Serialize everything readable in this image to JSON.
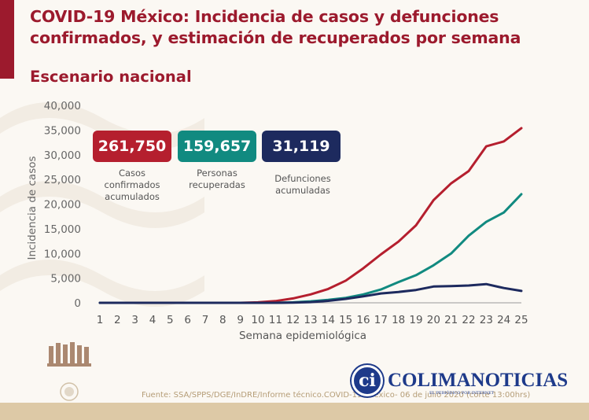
{
  "header": {
    "title_line1": "COVID-19 México: Incidencia de casos y defunciones",
    "title_line2": "confirmados, y estimación de recuperados por semana",
    "subtitle": "Escenario nacional"
  },
  "kpis": [
    {
      "value": "261,750",
      "label_lines": [
        "Casos",
        "confirmados",
        "acumulados"
      ],
      "color": "#b51f2e"
    },
    {
      "value": "159,657",
      "label_lines": [
        "Personas",
        "recuperadas"
      ],
      "color": "#118a80"
    },
    {
      "value": "31,119",
      "label_lines": [
        "Defunciones",
        "acumuladas"
      ],
      "color": "#1d2a5e"
    }
  ],
  "chart_data": {
    "type": "line",
    "title": "",
    "xlabel": "Semana epidemiológica",
    "ylabel": "Incidencia de casos",
    "x": [
      1,
      2,
      3,
      4,
      5,
      6,
      7,
      8,
      9,
      10,
      11,
      12,
      13,
      14,
      15,
      16,
      17,
      18,
      19,
      20,
      21,
      22,
      23,
      24,
      25
    ],
    "ylim": [
      0,
      40000
    ],
    "yticks": [
      0,
      5000,
      10000,
      15000,
      20000,
      25000,
      30000,
      35000,
      40000
    ],
    "ytick_labels": [
      "0",
      "5,000",
      "10,000",
      "15,000",
      "20,000",
      "25,000",
      "30,000",
      "35,000",
      "40,000"
    ],
    "grid": false,
    "legend": "none",
    "series": [
      {
        "color": "#b51f2e",
        "values": [
          0,
          0,
          0,
          0,
          0,
          0,
          0,
          0,
          0,
          100,
          350,
          900,
          1700,
          2800,
          4500,
          7000,
          9800,
          12400,
          15700,
          20800,
          24200,
          26700,
          31700,
          32700,
          35400
        ]
      },
      {
        "color": "#118a80",
        "values": [
          0,
          0,
          0,
          0,
          0,
          0,
          0,
          0,
          0,
          0,
          0,
          100,
          300,
          600,
          1000,
          1700,
          2700,
          4200,
          5600,
          7600,
          10000,
          13600,
          16400,
          18300,
          22000
        ]
      },
      {
        "color": "#1d2a5e",
        "values": [
          0,
          0,
          0,
          0,
          0,
          0,
          0,
          0,
          0,
          0,
          0,
          50,
          150,
          400,
          800,
          1300,
          1900,
          2200,
          2600,
          3300,
          3400,
          3500,
          3800,
          3000,
          2400
        ]
      }
    ]
  },
  "footer": {
    "source": "Fuente: SSA/SPPS/DGE/InDRE/Informe técnico.COVID-19 /México- 06 de julio 2020 (corte 13:00hrs)",
    "brand_initials": "ci",
    "brand_name": "COLIMANOTICIAS",
    "brand_tagline": "EL PERIÓDICO POR INTERNET"
  }
}
